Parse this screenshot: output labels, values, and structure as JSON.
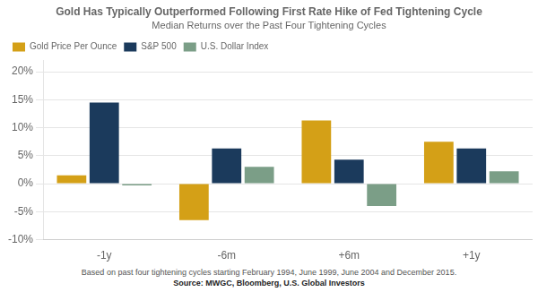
{
  "chart_data": {
    "type": "bar",
    "title": "Gold Has Typically Outperformed Following First Rate Hike of Fed Tightening Cycle",
    "subtitle": "Median Returns over the Past Four Tightening Cycles",
    "categories": [
      "-1y",
      "-6m",
      "+6m",
      "+1y"
    ],
    "series": [
      {
        "name": "Gold Price Per Ounce",
        "color": "#D4A017",
        "values": [
          1.5,
          -6.5,
          11.3,
          7.5
        ]
      },
      {
        "name": "S&P 500",
        "color": "#1B3A5C",
        "values": [
          14.5,
          6.3,
          4.3,
          6.3
        ]
      },
      {
        "name": "U.S. Dollar Index",
        "color": "#7B9E87",
        "values": [
          -0.3,
          3.0,
          -4.0,
          2.2
        ]
      }
    ],
    "ylim": [
      -10,
      22
    ],
    "yticks": [
      {
        "value": -10,
        "label": "-10%"
      },
      {
        "value": -5,
        "label": "-5%"
      },
      {
        "value": 0,
        "label": "0%"
      },
      {
        "value": 5,
        "label": "5%"
      },
      {
        "value": 10,
        "label": "10%"
      },
      {
        "value": 15,
        "label": "15%"
      },
      {
        "value": 20,
        "label": "20%"
      }
    ],
    "grid": true,
    "legend": "upper left",
    "annotations": [
      "Based on past four tightening cycles starting February 1994, June 1999, June 2004 and December 2015.",
      "Source: MWGC, Bloomberg, U.S. Global Investors"
    ]
  }
}
